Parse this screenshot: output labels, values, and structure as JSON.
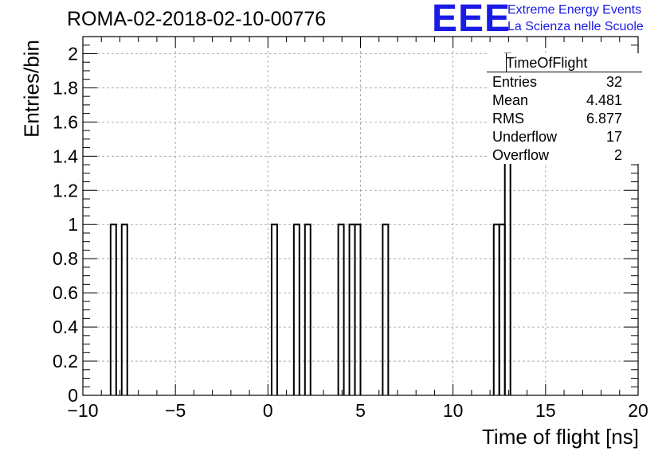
{
  "header": {
    "run_title": "ROMA-02-2018-02-10-00776",
    "logo_text": "EEE",
    "logo_line1": "Extreme Energy Events",
    "logo_line2": "La Scienza nelle Scuole"
  },
  "stats_box": {
    "title": "TimeOfFlight",
    "rows": [
      {
        "key": "Entries",
        "value": "32"
      },
      {
        "key": "Mean",
        "value": "4.481"
      },
      {
        "key": "RMS",
        "value": "6.877"
      },
      {
        "key": "Underflow",
        "value": "17"
      },
      {
        "key": "Overflow",
        "value": "2"
      }
    ]
  },
  "colors": {
    "logo": "#1a1ae6",
    "line": "#000000",
    "grid": "#9a9a9a"
  },
  "chart_data": {
    "type": "bar",
    "histogram": true,
    "xlabel": "Time of flight [ns]",
    "ylabel": "Entries/bin",
    "xlim": [
      -10,
      20
    ],
    "ylim": [
      0,
      2.1
    ],
    "grid": true,
    "bin_width": 0.3,
    "x_ticks": [
      -10,
      -5,
      0,
      5,
      10,
      15,
      20
    ],
    "x_tick_labels": [
      "−10",
      "−5",
      "0",
      "5",
      "10",
      "15",
      "20"
    ],
    "y_ticks": [
      0,
      0.2,
      0.4,
      0.6,
      0.8,
      1,
      1.2,
      1.4,
      1.6,
      1.8,
      2
    ],
    "y_tick_labels": [
      "0",
      "0.2",
      "0.4",
      "0.6",
      "0.8",
      "1",
      "1.2",
      "1.4",
      "1.6",
      "1.8",
      "2"
    ],
    "bins": [
      {
        "x0": -8.5,
        "x1": -8.2,
        "count": 1
      },
      {
        "x0": -7.9,
        "x1": -7.6,
        "count": 1
      },
      {
        "x0": 0.2,
        "x1": 0.5,
        "count": 1
      },
      {
        "x0": 1.4,
        "x1": 1.7,
        "count": 1
      },
      {
        "x0": 2.0,
        "x1": 2.3,
        "count": 1
      },
      {
        "x0": 3.8,
        "x1": 4.1,
        "count": 1
      },
      {
        "x0": 4.4,
        "x1": 4.7,
        "count": 1
      },
      {
        "x0": 4.7,
        "x1": 5.0,
        "count": 1
      },
      {
        "x0": 6.2,
        "x1": 6.5,
        "count": 1
      },
      {
        "x0": 12.2,
        "x1": 12.5,
        "count": 1
      },
      {
        "x0": 12.5,
        "x1": 12.8,
        "count": 1
      },
      {
        "x0": 12.8,
        "x1": 13.1,
        "count": 2
      }
    ]
  }
}
